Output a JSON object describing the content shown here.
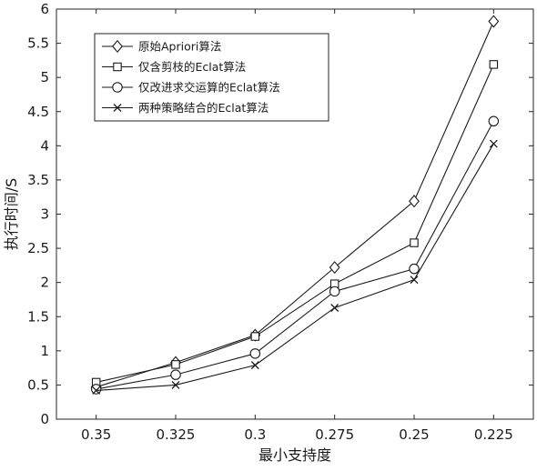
{
  "chart_data": {
    "type": "line",
    "title": "",
    "xlabel": "最小支持度",
    "ylabel": "执行时间/S",
    "categories": [
      "0.35",
      "0.325",
      "0.3",
      "0.275",
      "0.25",
      "0.225"
    ],
    "ylim": [
      0,
      6
    ],
    "yticks": [
      "0",
      "0.5",
      "1",
      "1.5",
      "2",
      "2.5",
      "3",
      "3.5",
      "4",
      "4.5",
      "5",
      "5.5",
      "6"
    ],
    "grid": false,
    "legend_position": "top-left",
    "series": [
      {
        "name": "原始Apriori算法",
        "marker": "diamond",
        "values": [
          0.47,
          0.83,
          1.23,
          2.22,
          3.19,
          5.82
        ]
      },
      {
        "name": "仅含剪枝的Eclat算法",
        "marker": "square",
        "values": [
          0.54,
          0.8,
          1.21,
          1.98,
          2.58,
          5.19
        ]
      },
      {
        "name": "仅改进求交运算的Eclat算法",
        "marker": "circle",
        "values": [
          0.44,
          0.65,
          0.96,
          1.87,
          2.2,
          4.36
        ]
      },
      {
        "name": "两种策略结合的Eclat算法",
        "marker": "cross",
        "values": [
          0.42,
          0.5,
          0.79,
          1.63,
          2.04,
          4.03
        ]
      }
    ],
    "colors": {
      "line": "#1a1a1a",
      "axis": "#262626"
    }
  }
}
